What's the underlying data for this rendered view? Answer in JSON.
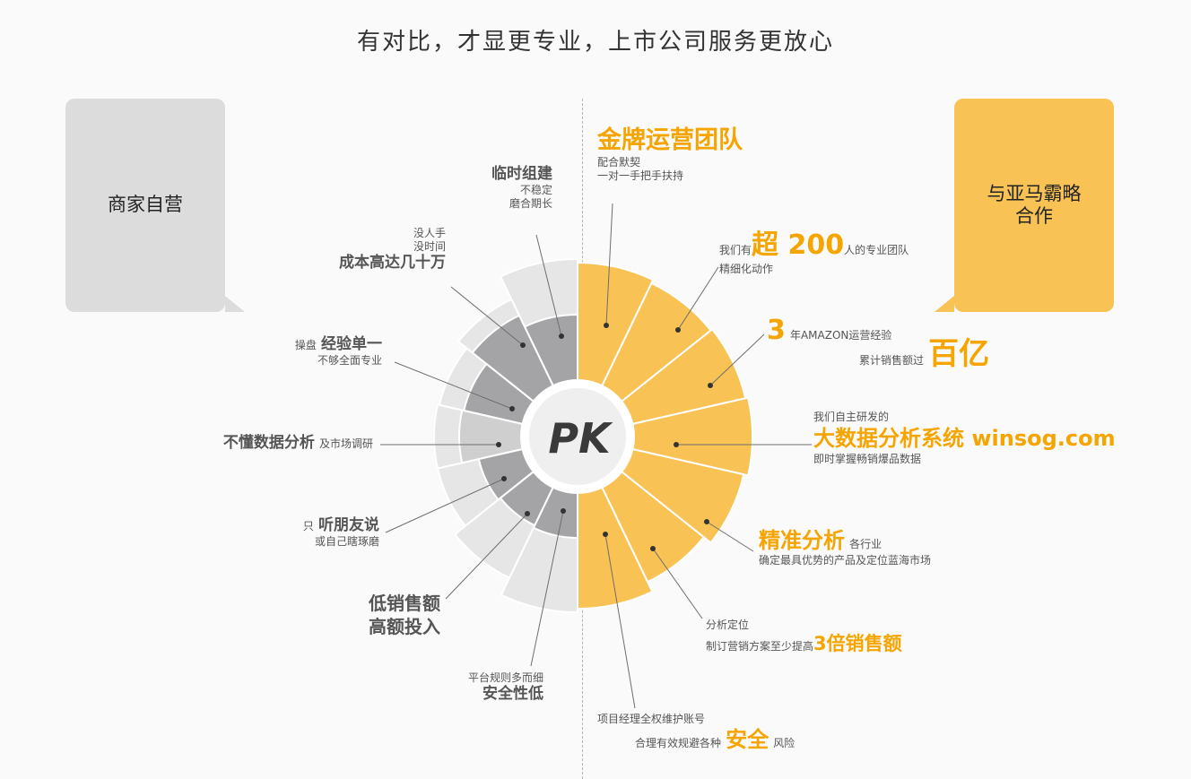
{
  "title": "有对比，才显更专业，上市公司服务更放心",
  "left_panel": {
    "title": "商家自营"
  },
  "right_panel": {
    "title": "与亚马霸略\n合作"
  },
  "center": {
    "label": "PK"
  },
  "colors": {
    "accent": "#f5a400",
    "right_segment": "#f8c255",
    "left_outer": "#e6e6e6",
    "left_inner_dark": "#a4a4a6",
    "left_inner_light": "#cfcfd0",
    "bubble_left": "#dcdcdc",
    "bubble_right": "#f8c255"
  },
  "left_segments": [
    {
      "inner": "dark"
    },
    {
      "inner": "dark"
    },
    {
      "inner": "dark"
    },
    {
      "inner": "light"
    },
    {
      "inner": "dark"
    },
    {
      "inner": "dark"
    },
    {
      "inner": "dark"
    }
  ],
  "left_items": [
    {
      "title": "临时组建",
      "line1": "不稳定",
      "line2": "磨合期长"
    },
    {
      "pre1": "没人手",
      "pre2": "没时间",
      "title": "成本高达几十万"
    },
    {
      "prefix": "操盘",
      "title": "经验单一",
      "sub": "不够全面专业"
    },
    {
      "title": "不懂数据分析",
      "suffix": "及市场调研"
    },
    {
      "prefix": "只",
      "title": "听朋友说",
      "sub": "或自己瞎琢磨"
    },
    {
      "title1": "低销售额",
      "title2": "高额投入"
    },
    {
      "pre": "平台规则多而细",
      "title": "安全性低"
    }
  ],
  "right_items": [
    {
      "title": "金牌运营团队",
      "line1": "配合默契",
      "line2": "一对一手把手扶持"
    },
    {
      "pre": "我们有",
      "highlight": "超 200",
      "post": "人的专业团队",
      "sub": "精细化动作"
    },
    {
      "highlight": "3",
      "text": "年AMAZON运营经验",
      "sub": "累计销售额过",
      "highlight2": "百亿"
    },
    {
      "pre": "我们自主研发的",
      "title": "大数据分析系统 winsog.com",
      "sub": "即时掌握畅销爆品数据"
    },
    {
      "title": "精准分析",
      "suffix": "各行业",
      "sub": "确定最具优势的产品及定位蓝海市场"
    },
    {
      "pre": "分析定位",
      "text": "制订营销方案至少提高",
      "highlight": "3倍销售额"
    },
    {
      "pre": "项目经理全权维护账号",
      "text": "合理有效规避各种",
      "highlight": "安全",
      "post": "风险"
    }
  ]
}
